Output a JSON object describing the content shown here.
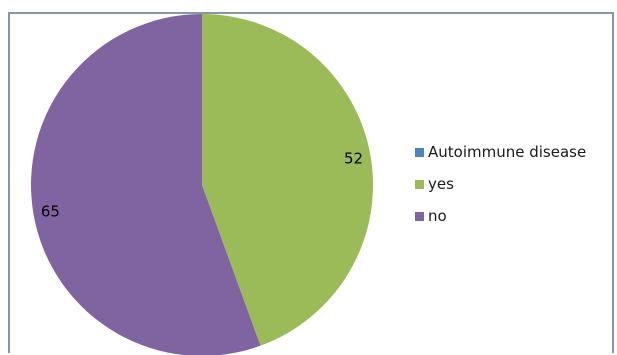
{
  "chart_data": {
    "type": "pie",
    "title": "",
    "slices": [
      {
        "label": "Autoimmune disease",
        "value": 0,
        "color": "#4f81bd",
        "show_label": false
      },
      {
        "label": "yes",
        "value": 52,
        "color": "#9bbb59",
        "show_label": true
      },
      {
        "label": "no",
        "value": 65,
        "color": "#8064a2",
        "show_label": true
      }
    ],
    "legend_position": "right",
    "start_angle_deg": 0,
    "direction": "clockwise"
  }
}
